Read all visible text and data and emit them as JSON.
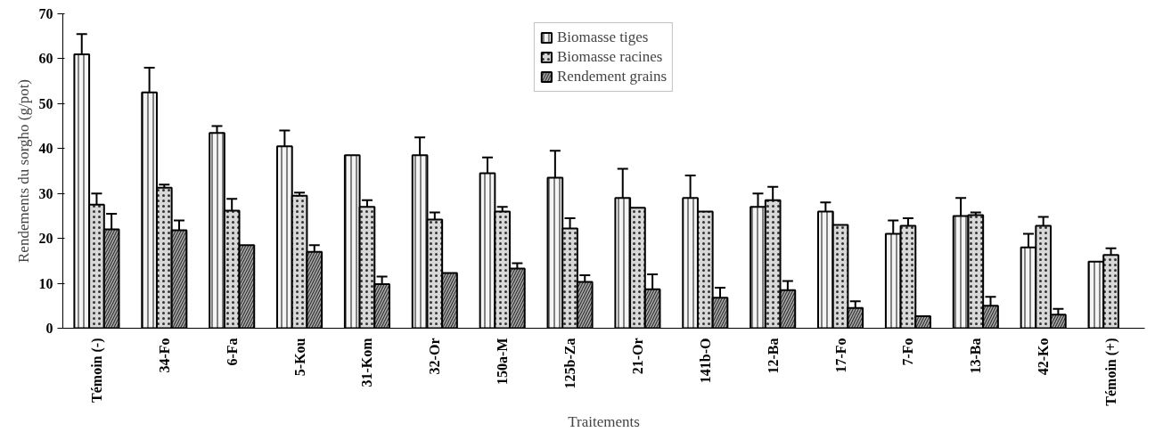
{
  "chart_data": {
    "type": "bar",
    "xlabel": "Traitements",
    "ylabel": "Rendements du sorgho (g/pot)",
    "categories": [
      "Témoin (-)",
      "34-Fo",
      "6-Fa",
      "5-Kou",
      "31-Kom",
      "32-Or",
      "150a-M",
      "125b-Za",
      "21-Or",
      "141b-O",
      "12-Ba",
      "17-Fo",
      "7-Fo",
      "13-Ba",
      "42-Ko",
      "Témoin (+)"
    ],
    "series": [
      {
        "name": "Biomasse tiges",
        "color": "#f4f4f4",
        "values": [
          61,
          52.5,
          43.5,
          40.5,
          38.5,
          38.5,
          34.5,
          33.5,
          29,
          29,
          27,
          26,
          21,
          25,
          18,
          14.8
        ],
        "errors": [
          [
            61,
            65.5
          ],
          [
            52.5,
            58
          ],
          [
            43.5,
            45
          ],
          [
            40.5,
            44
          ],
          null,
          [
            38.5,
            42.5
          ],
          [
            34.5,
            38
          ],
          [
            33.5,
            39.5
          ],
          [
            29,
            35.5
          ],
          [
            29,
            34
          ],
          [
            27,
            30
          ],
          [
            26,
            28
          ],
          [
            21,
            24
          ],
          [
            25,
            29
          ],
          [
            18,
            21
          ],
          null
        ]
      },
      {
        "name": "Biomasse racines",
        "color": "#d8d8d8",
        "values": [
          27.5,
          31.3,
          26.2,
          29.5,
          27,
          24.2,
          26,
          22.2,
          26.8,
          26,
          28.5,
          23,
          22.8,
          25.2,
          22.8,
          16.3
        ],
        "errors": [
          [
            27.5,
            30
          ],
          [
            31.3,
            32
          ],
          [
            26.2,
            28.8
          ],
          [
            29.5,
            30.2
          ],
          [
            27,
            28.5
          ],
          [
            24.2,
            25.8
          ],
          [
            26,
            27
          ],
          [
            22.2,
            24.5
          ],
          null,
          null,
          [
            28.5,
            31.5
          ],
          null,
          [
            22.8,
            24.5
          ],
          [
            25.2,
            25.8
          ],
          [
            22.8,
            24.8
          ],
          [
            16.3,
            17.8
          ]
        ]
      },
      {
        "name": "Rendement grains",
        "color": "#a8a8a8",
        "values": [
          22,
          21.8,
          18.5,
          17,
          9.8,
          12.3,
          13.3,
          10.3,
          8.7,
          6.8,
          8.5,
          4.5,
          2.7,
          5,
          3,
          null
        ],
        "errors": [
          [
            22,
            25.5
          ],
          [
            21.8,
            24
          ],
          null,
          [
            17,
            18.5
          ],
          [
            9.8,
            11.5
          ],
          null,
          [
            13.3,
            14.5
          ],
          [
            10.3,
            11.8
          ],
          [
            8.7,
            12
          ],
          [
            6.8,
            9
          ],
          [
            8.5,
            10.5
          ],
          [
            4.5,
            6
          ],
          null,
          [
            5,
            7
          ],
          [
            3,
            4.3
          ],
          null
        ]
      }
    ],
    "ylim": [
      0,
      70
    ],
    "yticks": [
      0,
      10,
      20,
      30,
      40,
      50,
      60,
      70
    ],
    "grid": false,
    "legend": "top"
  }
}
